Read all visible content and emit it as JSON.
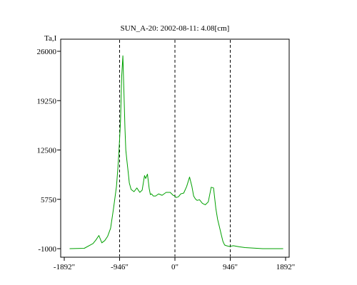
{
  "chart_data": {
    "type": "line",
    "title": "SUN_A-20: 2002-08-11: 4.08[cm]",
    "ylabel": "Ta,I",
    "xlabel": "",
    "xlim": [
      -1892,
      1892
    ],
    "ylim": [
      -1000,
      26000
    ],
    "x_ticks": [
      {
        "value": -1892,
        "label": "-1892\""
      },
      {
        "value": -946,
        "label": "-946\""
      },
      {
        "value": 0,
        "label": "0\""
      },
      {
        "value": 946,
        "label": "946\""
      },
      {
        "value": 1892,
        "label": "1892\""
      }
    ],
    "y_ticks": [
      {
        "value": 26000,
        "label": "26000"
      },
      {
        "value": 19250,
        "label": "19250"
      },
      {
        "value": 12500,
        "label": "12500"
      },
      {
        "value": 5750,
        "label": "5750"
      },
      {
        "value": -1000,
        "label": "-1000"
      }
    ],
    "vertical_markers": [
      -946,
      0,
      946
    ],
    "grid": false,
    "series": [
      {
        "color": "#00a000",
        "x": [
          -1800,
          -1550,
          -1400,
          -1350,
          -1300,
          -1250,
          -1200,
          -1150,
          -1100,
          -1050,
          -1000,
          -975,
          -960,
          -946,
          -930,
          -910,
          -890,
          -870,
          -855,
          -840,
          -820,
          -800,
          -780,
          -750,
          -700,
          -650,
          -600,
          -560,
          -520,
          -500,
          -470,
          -440,
          -420,
          -400,
          -370,
          -330,
          -280,
          -220,
          -150,
          -80,
          -30,
          -5,
          20,
          60,
          100,
          150,
          200,
          250,
          290,
          320,
          350,
          380,
          420,
          470,
          520,
          570,
          620,
          660,
          700,
          730,
          760,
          790,
          820,
          850,
          880,
          930,
          1000,
          1100,
          1200,
          1300,
          1400,
          1500,
          1600,
          1700,
          1850
        ],
        "y": [
          -1000,
          -950,
          -300,
          200,
          800,
          -200,
          100,
          700,
          1800,
          4500,
          7500,
          10000,
          12000,
          14000,
          16500,
          22500,
          25400,
          20000,
          15500,
          12500,
          11000,
          9500,
          8000,
          7100,
          6800,
          7300,
          6700,
          7000,
          9000,
          8600,
          9200,
          7200,
          6400,
          6500,
          6200,
          6200,
          6500,
          6300,
          6700,
          6700,
          6300,
          6200,
          6000,
          6100,
          6500,
          6600,
          7500,
          8800,
          7500,
          6200,
          5800,
          5600,
          5700,
          5200,
          5000,
          5400,
          7400,
          7300,
          4500,
          3000,
          2000,
          1000,
          0,
          -500,
          -600,
          -700,
          -600,
          -750,
          -850,
          -900,
          -950,
          -1000,
          -1000,
          -1000,
          -1000
        ]
      }
    ]
  }
}
